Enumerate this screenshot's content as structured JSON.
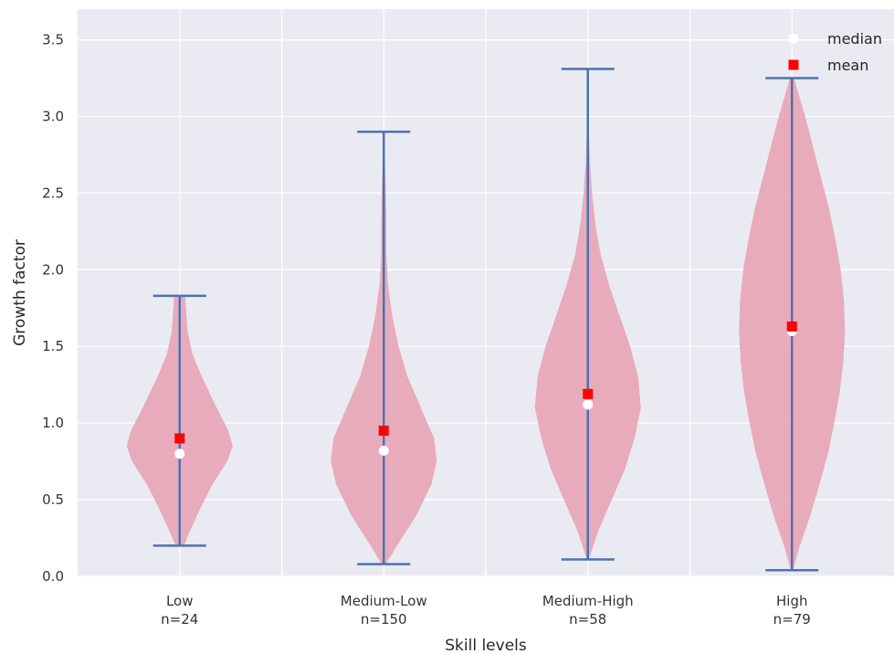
{
  "chart_data": {
    "type": "violin",
    "xlabel": "Skill levels",
    "ylabel": "Growth factor",
    "ylim": [
      0,
      3.7
    ],
    "yticks": [
      "0.0",
      "0.5",
      "1.0",
      "1.5",
      "2.0",
      "2.5",
      "3.0",
      "3.5"
    ],
    "grid": true,
    "legend": {
      "placement": "top-right",
      "entries": [
        {
          "label": "median",
          "marker": "circle",
          "color": "#ffffff"
        },
        {
          "label": "mean",
          "marker": "square",
          "color": "#ff0000"
        }
      ]
    },
    "colors": {
      "background": "#eaeaf2",
      "violin_fill": "#e7a5b7",
      "stem": "#4c72b0",
      "grid": "#ffffff"
    },
    "categories": [
      {
        "label": "Low",
        "n_label": "n=24",
        "min": 0.2,
        "max": 1.83,
        "median": 0.8,
        "mean": 0.9,
        "density": [
          [
            0.2,
            0.08
          ],
          [
            0.3,
            0.2
          ],
          [
            0.45,
            0.4
          ],
          [
            0.6,
            0.62
          ],
          [
            0.75,
            0.9
          ],
          [
            0.85,
            1.0
          ],
          [
            0.95,
            0.92
          ],
          [
            1.1,
            0.7
          ],
          [
            1.3,
            0.42
          ],
          [
            1.45,
            0.24
          ],
          [
            1.6,
            0.15
          ],
          [
            1.75,
            0.12
          ],
          [
            1.83,
            0.1
          ]
        ]
      },
      {
        "label": "Medium-Low",
        "n_label": "n=150",
        "min": 0.08,
        "max": 2.9,
        "median": 0.82,
        "mean": 0.95,
        "density": [
          [
            0.08,
            0.04
          ],
          [
            0.2,
            0.25
          ],
          [
            0.4,
            0.62
          ],
          [
            0.6,
            0.9
          ],
          [
            0.75,
            1.0
          ],
          [
            0.9,
            0.95
          ],
          [
            1.1,
            0.7
          ],
          [
            1.3,
            0.45
          ],
          [
            1.5,
            0.28
          ],
          [
            1.7,
            0.16
          ],
          [
            1.9,
            0.08
          ],
          [
            2.1,
            0.05
          ],
          [
            2.3,
            0.05
          ],
          [
            2.5,
            0.04
          ],
          [
            2.7,
            0.02
          ],
          [
            2.9,
            0.01
          ]
        ]
      },
      {
        "label": "Medium-High",
        "n_label": "n=58",
        "min": 0.11,
        "max": 3.31,
        "median": 1.12,
        "mean": 1.19,
        "density": [
          [
            0.11,
            0.02
          ],
          [
            0.3,
            0.2
          ],
          [
            0.5,
            0.45
          ],
          [
            0.7,
            0.7
          ],
          [
            0.9,
            0.88
          ],
          [
            1.1,
            1.0
          ],
          [
            1.3,
            0.95
          ],
          [
            1.5,
            0.8
          ],
          [
            1.7,
            0.6
          ],
          [
            1.9,
            0.4
          ],
          [
            2.1,
            0.24
          ],
          [
            2.3,
            0.14
          ],
          [
            2.5,
            0.08
          ],
          [
            2.7,
            0.04
          ],
          [
            2.9,
            0.02
          ],
          [
            3.1,
            0.01
          ],
          [
            3.31,
            0.005
          ]
        ]
      },
      {
        "label": "High",
        "n_label": "n=79",
        "min": 0.04,
        "max": 3.25,
        "median": 1.6,
        "mean": 1.63,
        "density": [
          [
            0.04,
            0.02
          ],
          [
            0.2,
            0.15
          ],
          [
            0.4,
            0.35
          ],
          [
            0.6,
            0.52
          ],
          [
            0.8,
            0.68
          ],
          [
            1.0,
            0.8
          ],
          [
            1.2,
            0.9
          ],
          [
            1.4,
            0.97
          ],
          [
            1.6,
            1.0
          ],
          [
            1.8,
            0.98
          ],
          [
            2.0,
            0.92
          ],
          [
            2.2,
            0.82
          ],
          [
            2.4,
            0.7
          ],
          [
            2.6,
            0.55
          ],
          [
            2.8,
            0.4
          ],
          [
            3.0,
            0.25
          ],
          [
            3.2,
            0.08
          ],
          [
            3.25,
            0.04
          ]
        ]
      }
    ]
  }
}
